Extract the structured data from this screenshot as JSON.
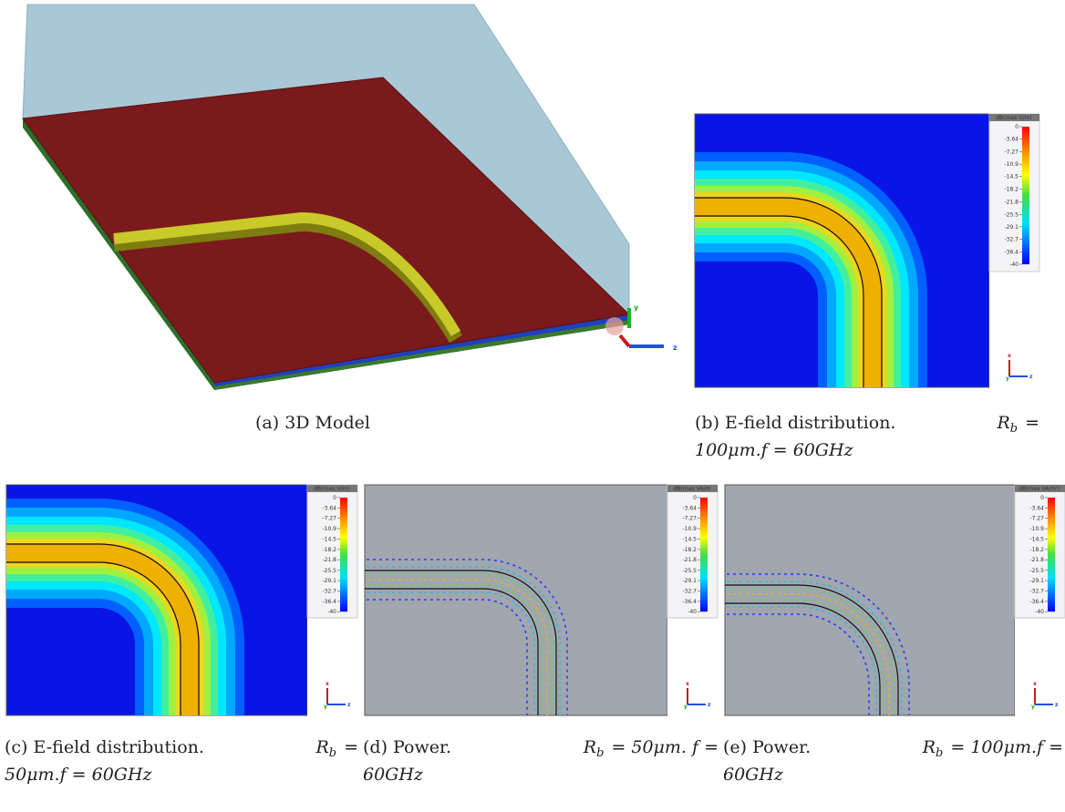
{
  "figure": {
    "colorbar_ticks": [
      0,
      -3.64,
      -7.27,
      -10.9,
      -14.5,
      -18.2,
      -21.8,
      -25.5,
      -29.1,
      -32.7,
      -36.4,
      -40
    ],
    "panels": [
      {
        "caption": {
          "text": "(a) 3D Model"
        },
        "axis_labels": [
          "y",
          "z"
        ]
      },
      {
        "unit": "dB(max V/m)",
        "axis_labels": [
          "x",
          "y",
          "z"
        ],
        "caption": {
          "text": "(b) E-field distribution.",
          "symbol": "R",
          "subscript": "b",
          "math": [
            "=",
            "100μm.f = 60GHz"
          ]
        }
      },
      {
        "unit": "dB(max V/m)",
        "axis_labels": [
          "x",
          "y",
          "z"
        ],
        "caption": {
          "text": "(c) E-field distribution.",
          "symbol": "R",
          "subscript": "b",
          "math": [
            "=",
            "50μm.f = 60GHz"
          ]
        }
      },
      {
        "unit": "dB(max VA/m",
        "axis_labels": [
          "x",
          "y",
          "z"
        ],
        "caption": {
          "text": "(d) Power.",
          "symbol": "R",
          "subscript": "b",
          "math": [
            "= 50μm.  f =",
            "60GHz"
          ]
        }
      },
      {
        "unit": "dB(max VA/m²)",
        "axis_labels": [
          "x",
          "y",
          "z"
        ],
        "caption": {
          "text": "(e) Power.",
          "symbol": "R",
          "subscript": "b",
          "math": [
            "= 100μm.f =",
            "60GHz"
          ]
        }
      }
    ]
  }
}
